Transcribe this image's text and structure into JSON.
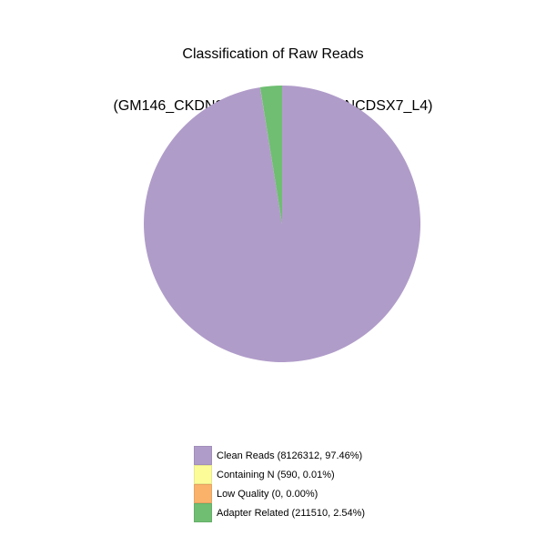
{
  "chart_data": {
    "type": "pie",
    "title": "Classification of Raw Reads",
    "subtitle": "(GM146_CKDN230011984-1A_H73NCDSX7_L4)",
    "start_angle_deg": 90,
    "direction": "clockwise",
    "legend_position": "bottom-center",
    "background_color": "#ffffff",
    "slices": [
      {
        "label": "Clean Reads",
        "count": 8126312,
        "percent": 97.46,
        "color": "#B09CC9",
        "legend_label": "Clean Reads (8126312, 97.46%)"
      },
      {
        "label": "Containing N",
        "count": 590,
        "percent": 0.01,
        "color": "#FCFC99",
        "legend_label": "Containing N (590, 0.01%)"
      },
      {
        "label": "Low Quality",
        "count": 0,
        "percent": 0.0,
        "color": "#FAB26B",
        "legend_label": "Low Quality (0, 0.00%)"
      },
      {
        "label": "Adapter Related",
        "count": 211510,
        "percent": 2.54,
        "color": "#6FBE72",
        "legend_label": "Adapter Related (211510, 2.54%)"
      }
    ]
  }
}
